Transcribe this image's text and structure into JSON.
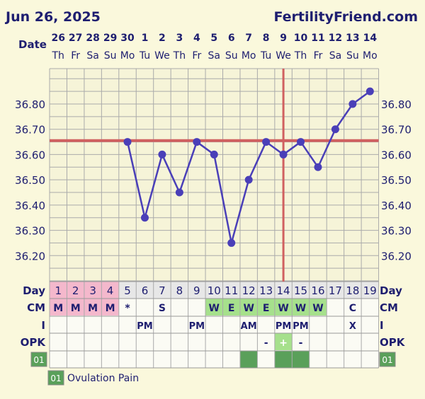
{
  "header": {
    "date": "Jun 26, 2025",
    "site": "FertilityFriend.com",
    "date_label": "Date"
  },
  "colors": {
    "background": "#faf8dc",
    "grid": "#aaaaaa",
    "line": "#4a3fb8",
    "coverline": "#d06060",
    "ovulation_line": "#d06060",
    "menses": "#f4b8cc",
    "cm_fertile": "#a6e08c",
    "opk_positive": "#a6e08c",
    "symptom": "#5aa05a"
  },
  "columns": [
    {
      "date": "26",
      "dow": "Th",
      "day": "1",
      "cm": "M",
      "i": "",
      "opk": ""
    },
    {
      "date": "27",
      "dow": "Fr",
      "day": "2",
      "cm": "M",
      "i": "",
      "opk": ""
    },
    {
      "date": "28",
      "dow": "Sa",
      "day": "3",
      "cm": "M",
      "i": "",
      "opk": ""
    },
    {
      "date": "29",
      "dow": "Su",
      "day": "4",
      "cm": "M",
      "i": "",
      "opk": ""
    },
    {
      "date": "30",
      "dow": "Mo",
      "day": "5",
      "cm": "*",
      "i": "",
      "opk": ""
    },
    {
      "date": "1",
      "dow": "Tu",
      "day": "6",
      "cm": "",
      "i": "PM",
      "opk": ""
    },
    {
      "date": "2",
      "dow": "We",
      "day": "7",
      "cm": "S",
      "i": "",
      "opk": ""
    },
    {
      "date": "3",
      "dow": "Th",
      "day": "8",
      "cm": "",
      "i": "",
      "opk": ""
    },
    {
      "date": "4",
      "dow": "Fr",
      "day": "9",
      "cm": "",
      "i": "PM",
      "opk": ""
    },
    {
      "date": "5",
      "dow": "Sa",
      "day": "10",
      "cm": "W",
      "i": "",
      "opk": ""
    },
    {
      "date": "6",
      "dow": "Su",
      "day": "11",
      "cm": "E",
      "i": "",
      "opk": ""
    },
    {
      "date": "7",
      "dow": "Mo",
      "day": "12",
      "cm": "W",
      "i": "AM",
      "opk": ""
    },
    {
      "date": "8",
      "dow": "Tu",
      "day": "13",
      "cm": "E",
      "i": "",
      "opk": "-"
    },
    {
      "date": "9",
      "dow": "We",
      "day": "14",
      "cm": "W",
      "i": "PM",
      "opk": "+"
    },
    {
      "date": "10",
      "dow": "Th",
      "day": "15",
      "cm": "W",
      "i": "PM",
      "opk": "-"
    },
    {
      "date": "11",
      "dow": "Fr",
      "day": "16",
      "cm": "W",
      "i": "",
      "opk": ""
    },
    {
      "date": "12",
      "dow": "Sa",
      "day": "17",
      "cm": "",
      "i": "",
      "opk": ""
    },
    {
      "date": "13",
      "dow": "Su",
      "day": "18",
      "cm": "C",
      "i": "X",
      "opk": ""
    },
    {
      "date": "14",
      "dow": "Mo",
      "day": "19",
      "cm": "",
      "i": "",
      "opk": ""
    }
  ],
  "chart_data": {
    "type": "line",
    "ylim": [
      36.1,
      36.94
    ],
    "yticks": [
      "36.80",
      "36.70",
      "36.60",
      "36.50",
      "36.40",
      "36.30",
      "36.20"
    ],
    "temps": [
      null,
      null,
      null,
      null,
      36.65,
      36.35,
      36.6,
      36.45,
      36.65,
      36.6,
      36.25,
      36.5,
      36.65,
      36.6,
      36.65,
      36.55,
      36.7,
      36.8,
      36.85
    ],
    "coverline": 36.655,
    "ovulation_day_index": 13,
    "grid": true
  },
  "row_labels": {
    "day": "Day",
    "cm": "CM",
    "i": "I",
    "opk": "OPK",
    "symptom": "01"
  },
  "symptoms": {
    "code": "01",
    "name": "Ovulation Pain",
    "days": [
      11,
      13,
      14
    ]
  },
  "legend": {
    "code": "01",
    "name": "Ovulation Pain"
  }
}
